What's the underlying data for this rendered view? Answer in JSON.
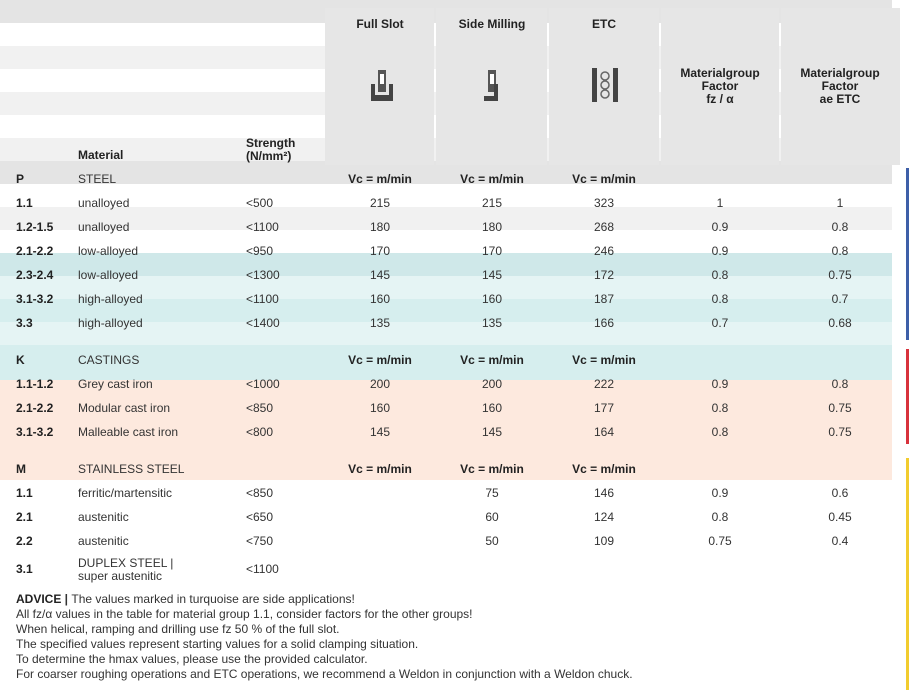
{
  "header": {
    "material": "Material",
    "strength": "Strength\n(N/mm²)",
    "full_slot": "Full Slot",
    "side_milling": "Side Milling",
    "etc": "ETC",
    "factor_fz": "Materialgroup\nFactor\nfz / α",
    "factor_ae": "Materialgroup\nFactor\nae ETC"
  },
  "sections": [
    {
      "code": "P",
      "name": "STEEL",
      "vc": [
        "Vc = m/min",
        "Vc = m/min",
        "Vc = m/min"
      ],
      "rows": [
        {
          "group": "1.1",
          "material": "unalloyed",
          "strength": "<500",
          "full_slot": 215,
          "side_milling": 215,
          "etc": 323,
          "factor_fz": 1,
          "factor_ae": 1
        },
        {
          "group": "1.2-1.5",
          "material": "unalloyed",
          "strength": "<1100",
          "full_slot": 180,
          "side_milling": 180,
          "etc": 268,
          "factor_fz": 0.9,
          "factor_ae": 0.8
        },
        {
          "group": "2.1-2.2",
          "material": "low-alloyed",
          "strength": "<950",
          "full_slot": 170,
          "side_milling": 170,
          "etc": 246,
          "factor_fz": 0.9,
          "factor_ae": 0.8
        },
        {
          "group": "2.3-2.4",
          "material": "low-alloyed",
          "strength": "<1300",
          "full_slot": 145,
          "side_milling": 145,
          "etc": 172,
          "factor_fz": 0.8,
          "factor_ae": 0.75
        },
        {
          "group": "3.1-3.2",
          "material": "high-alloyed",
          "strength": "<1100",
          "full_slot": 160,
          "side_milling": 160,
          "etc": 187,
          "factor_fz": 0.8,
          "factor_ae": 0.7
        },
        {
          "group": "3.3",
          "material": "high-alloyed",
          "strength": "<1400",
          "full_slot": 135,
          "side_milling": 135,
          "etc": 166,
          "factor_fz": 0.7,
          "factor_ae": 0.68
        }
      ]
    },
    {
      "code": "K",
      "name": "CASTINGS",
      "vc": [
        "Vc = m/min",
        "Vc = m/min",
        "Vc = m/min"
      ],
      "rows": [
        {
          "group": "1.1-1.2",
          "material": "Grey cast iron",
          "strength": "<1000",
          "full_slot": 200,
          "side_milling": 200,
          "etc": 222,
          "factor_fz": 0.9,
          "factor_ae": 0.8
        },
        {
          "group": "2.1-2.2",
          "material": "Modular cast iron",
          "strength": "<850",
          "full_slot": 160,
          "side_milling": 160,
          "etc": 177,
          "factor_fz": 0.8,
          "factor_ae": 0.75
        },
        {
          "group": "3.1-3.2",
          "material": "Malleable cast iron",
          "strength": "<800",
          "full_slot": 145,
          "side_milling": 145,
          "etc": 164,
          "factor_fz": 0.8,
          "factor_ae": 0.75
        }
      ]
    },
    {
      "code": "M",
      "name": "STAINLESS STEEL",
      "vc": [
        "Vc = m/min",
        "Vc = m/min",
        "Vc = m/min"
      ],
      "rows": [
        {
          "group": "1.1",
          "material": "ferritic/martensitic",
          "strength": "<850",
          "side_milling": 75,
          "etc": 146,
          "factor_fz": 0.9,
          "factor_ae": 0.6
        },
        {
          "group": "2.1",
          "material": "austenitic",
          "strength": "<650",
          "side_milling": 60,
          "etc": 124,
          "factor_fz": 0.8,
          "factor_ae": 0.45
        },
        {
          "group": "2.2",
          "material": "austenitic",
          "strength": "<750",
          "side_milling": 50,
          "etc": 109,
          "factor_fz": 0.75,
          "factor_ae": 0.4
        },
        {
          "group": "3.1",
          "material": "DUPLEX STEEL |\nsuper austenitic",
          "strength": "<1100"
        }
      ]
    }
  ],
  "advice": {
    "label": "ADVICE",
    "first": "The values marked in turquoise are side applications!",
    "lines": [
      "All fz/α values in the table for material group 1.1, consider factors for the other groups!",
      "When helical, ramping and drilling use fz 50 % of the full slot.",
      "The specified values represent starting values for a solid clamping situation.",
      "To determine the hmax values, please use the provided calculator.",
      "For coarser roughing operations and ETC operations, we recommend a Weldon in conjunction with a Weldon chuck."
    ]
  }
}
